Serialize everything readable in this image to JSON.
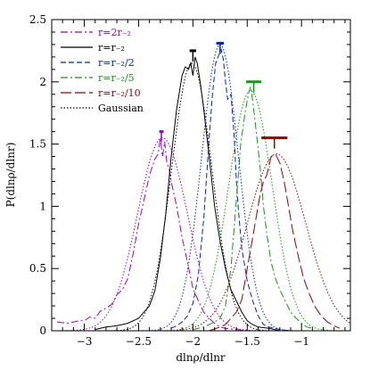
{
  "chart_data": {
    "type": "line",
    "xlabel": "dlnρ/dlnr",
    "ylabel": "P(dlnρ/dlnr)",
    "xlim": [
      -3.3,
      -0.55
    ],
    "ylim": [
      0,
      2.5
    ],
    "x_ticks": [
      -3,
      -2.5,
      -2,
      -1.5,
      -1
    ],
    "x_tick_labels": [
      "−3",
      "−2.5",
      "−2",
      "−1.5",
      "−1"
    ],
    "y_ticks": [
      0,
      0.5,
      1,
      1.5,
      2,
      2.5
    ],
    "y_tick_labels": [
      "0",
      "0.5",
      "1",
      "1.5",
      "2",
      "2.5"
    ],
    "legend_position": "top-left",
    "series": [
      {
        "name": "r=2r₋₂",
        "color": "#9900cc",
        "dash": "dashdot",
        "values_x": [
          -3.25,
          -3.15,
          -3.05,
          -3.0,
          -2.95,
          -2.9,
          -2.85,
          -2.8,
          -2.75,
          -2.7,
          -2.65,
          -2.6,
          -2.55,
          -2.5,
          -2.45,
          -2.4,
          -2.35,
          -2.32,
          -2.3,
          -2.28,
          -2.26,
          -2.24,
          -2.22,
          -2.2,
          -2.15,
          -2.1,
          -2.05,
          -2.0,
          -1.95,
          -1.9,
          -1.85,
          -1.8,
          -1.75,
          -1.7,
          -1.6,
          -1.5
        ],
        "values_y": [
          0.07,
          0.06,
          0.08,
          0.08,
          0.11,
          0.1,
          0.16,
          0.18,
          0.21,
          0.29,
          0.33,
          0.42,
          0.62,
          0.86,
          1.05,
          1.25,
          1.38,
          1.42,
          1.55,
          1.4,
          1.52,
          1.35,
          1.3,
          1.2,
          1.0,
          0.75,
          0.55,
          0.34,
          0.24,
          0.15,
          0.1,
          0.06,
          0.03,
          0.02,
          0.01,
          0.0
        ]
      },
      {
        "name": "r=r₋₂",
        "color": "#000000",
        "dash": "solid",
        "values_x": [
          -2.9,
          -2.8,
          -2.7,
          -2.6,
          -2.5,
          -2.45,
          -2.4,
          -2.35,
          -2.3,
          -2.25,
          -2.2,
          -2.15,
          -2.1,
          -2.07,
          -2.04,
          -2.02,
          -2.0,
          -1.98,
          -1.96,
          -1.93,
          -1.9,
          -1.85,
          -1.8,
          -1.75,
          -1.7,
          -1.65,
          -1.6,
          -1.55,
          -1.5,
          -1.45,
          -1.4,
          -1.3,
          -1.2
        ],
        "values_y": [
          0.01,
          0.03,
          0.04,
          0.06,
          0.1,
          0.15,
          0.2,
          0.32,
          0.58,
          0.94,
          1.4,
          1.78,
          2.05,
          2.12,
          2.1,
          2.15,
          2.05,
          2.2,
          2.15,
          1.98,
          1.78,
          1.4,
          1.0,
          0.72,
          0.5,
          0.33,
          0.24,
          0.15,
          0.08,
          0.05,
          0.03,
          0.02,
          0.0
        ]
      },
      {
        "name": "r=r₋₂/2",
        "color": "#0022dd",
        "dash": "dashed",
        "values_x": [
          -2.2,
          -2.15,
          -2.1,
          -2.05,
          -2.0,
          -1.95,
          -1.9,
          -1.85,
          -1.82,
          -1.79,
          -1.76,
          -1.74,
          -1.72,
          -1.7,
          -1.68,
          -1.65,
          -1.62,
          -1.6,
          -1.58,
          -1.55,
          -1.5,
          -1.45,
          -1.4,
          -1.35,
          -1.3,
          -1.2,
          -1.1
        ],
        "values_y": [
          0.02,
          0.04,
          0.07,
          0.12,
          0.22,
          0.45,
          0.9,
          1.55,
          1.9,
          2.15,
          2.22,
          2.26,
          2.18,
          2.0,
          1.86,
          1.9,
          1.56,
          1.2,
          0.96,
          0.66,
          0.4,
          0.24,
          0.12,
          0.05,
          0.03,
          0.01,
          0.0
        ]
      },
      {
        "name": "r=r₋₂/5",
        "color": "#119911",
        "dash": "dashdot",
        "values_x": [
          -2.0,
          -1.9,
          -1.8,
          -1.75,
          -1.7,
          -1.65,
          -1.6,
          -1.56,
          -1.52,
          -1.49,
          -1.47,
          -1.45,
          -1.43,
          -1.41,
          -1.38,
          -1.35,
          -1.32,
          -1.28,
          -1.24,
          -1.2,
          -1.15,
          -1.1,
          -1.05,
          -1.0,
          -0.95,
          -0.9
        ],
        "values_y": [
          0.01,
          0.03,
          0.07,
          0.1,
          0.2,
          0.5,
          1.05,
          1.5,
          1.75,
          1.9,
          1.96,
          1.85,
          1.7,
          1.55,
          1.3,
          1.0,
          0.78,
          0.55,
          0.42,
          0.33,
          0.24,
          0.15,
          0.1,
          0.06,
          0.03,
          0.02
        ]
      },
      {
        "name": "r=r₋₂/10",
        "color": "#990000",
        "dash": "longdash",
        "values_x": [
          -1.85,
          -1.75,
          -1.7,
          -1.65,
          -1.6,
          -1.55,
          -1.5,
          -1.45,
          -1.42,
          -1.38,
          -1.35,
          -1.32,
          -1.28,
          -1.24,
          -1.2,
          -1.16,
          -1.12,
          -1.08,
          -1.03,
          -0.98,
          -0.93,
          -0.88,
          -0.82,
          -0.76,
          -0.7,
          -0.65
        ],
        "values_y": [
          0.0,
          0.03,
          0.05,
          0.1,
          0.15,
          0.25,
          0.5,
          0.75,
          0.9,
          1.1,
          1.2,
          1.25,
          1.4,
          1.42,
          1.35,
          1.2,
          1.0,
          0.8,
          0.6,
          0.42,
          0.3,
          0.2,
          0.12,
          0.07,
          0.04,
          0.02
        ]
      },
      {
        "name": "Gaussian",
        "color": "#000000",
        "dash": "dotted",
        "gaussians": [
          {
            "mu": -2.28,
            "sigma": 0.23,
            "amp": 1.55,
            "color": "#9900cc"
          },
          {
            "mu": -2.01,
            "sigma": 0.185,
            "amp": 2.15,
            "color": "#000000"
          },
          {
            "mu": -1.75,
            "sigma": 0.17,
            "amp": 2.3,
            "color": "#0022dd"
          },
          {
            "mu": -1.47,
            "sigma": 0.2,
            "amp": 1.93,
            "color": "#119911"
          },
          {
            "mu": -1.23,
            "sigma": 0.27,
            "amp": 1.42,
            "color": "#990000"
          }
        ]
      }
    ],
    "error_bars": [
      {
        "x": -2.29,
        "y": 1.6,
        "xerr": 0.02,
        "color": "#9900cc"
      },
      {
        "x": -2.0,
        "y": 2.25,
        "xerr": 0.03,
        "color": "#000000"
      },
      {
        "x": -1.75,
        "y": 2.31,
        "xerr": 0.035,
        "color": "#0022dd"
      },
      {
        "x": -1.44,
        "y": 2.0,
        "xerr": 0.07,
        "color": "#119911"
      },
      {
        "x": -1.25,
        "y": 1.55,
        "xerr": 0.12,
        "color": "#990000"
      }
    ]
  }
}
